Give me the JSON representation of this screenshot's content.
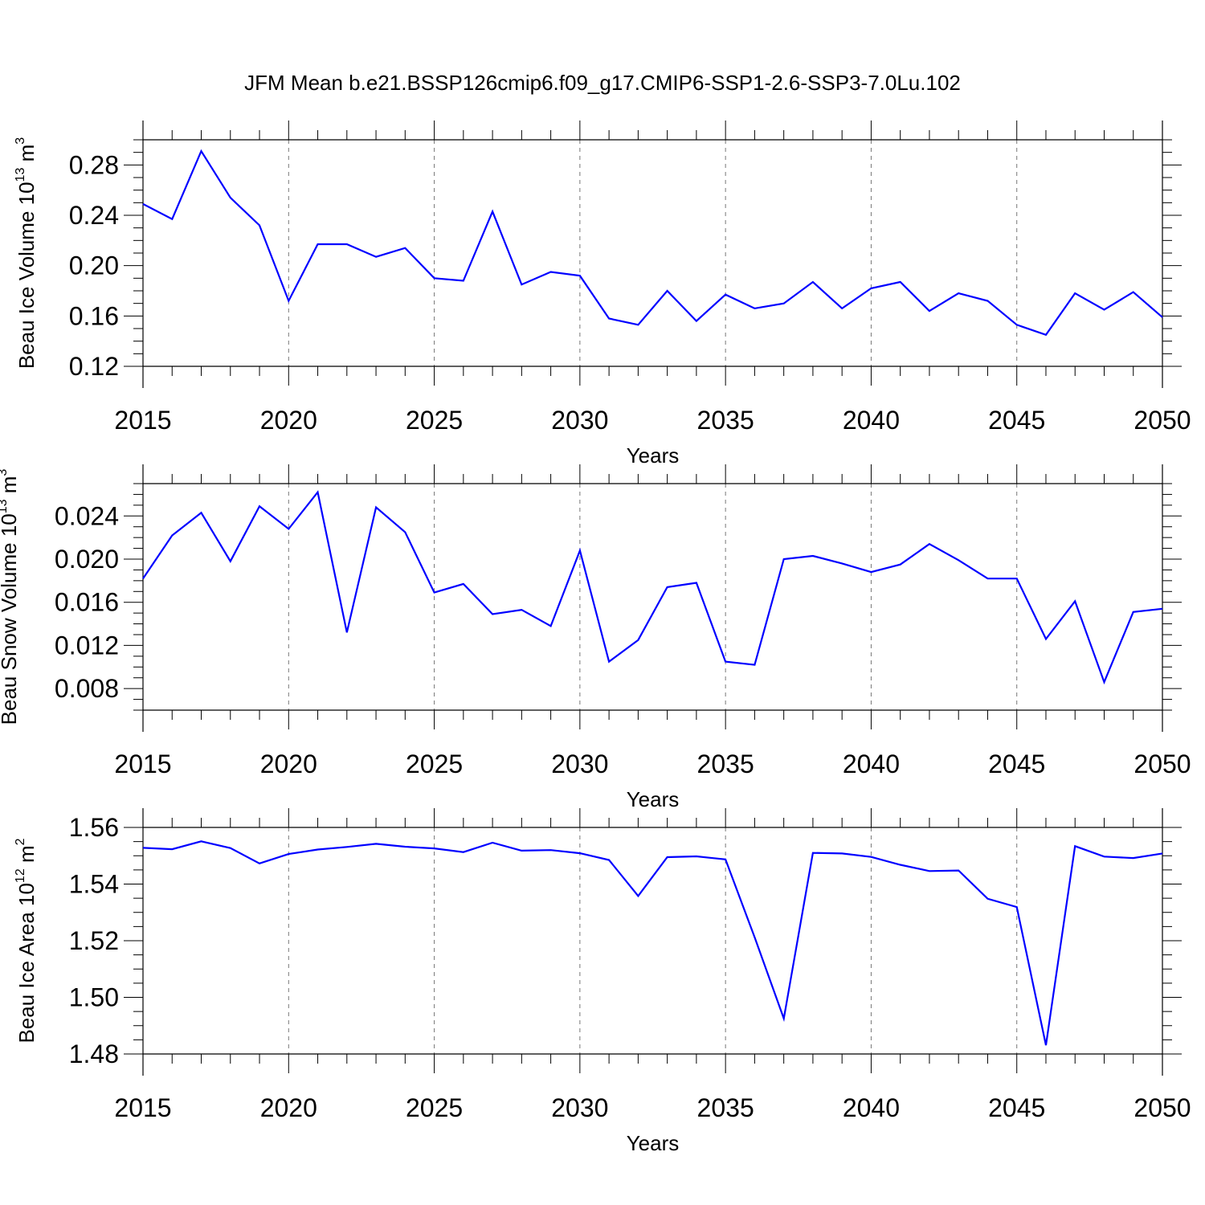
{
  "title": "JFM Mean b.e21.BSSP126cmip6.f09_g17.CMIP6-SSP1-2.6-SSP3-7.0Lu.102",
  "line_color": "#0000ff",
  "chart_data": [
    {
      "type": "line",
      "name": "ice-volume",
      "ylabel_main": "Beau Ice Volume 10",
      "ylabel_exp": "13",
      "ylabel_unit": " m",
      "ylabel_unit_exp": "3",
      "xlabel": "Years",
      "xlim": [
        2015,
        2050
      ],
      "ylim": [
        0.12,
        0.3
      ],
      "yticks": [
        0.12,
        0.16,
        0.2,
        0.24,
        0.28
      ],
      "ytick_labels": [
        "0.12",
        "0.16",
        "0.20",
        "0.24",
        "0.28"
      ],
      "xticks": [
        2015,
        2020,
        2025,
        2030,
        2035,
        2040,
        2045,
        2050
      ],
      "xtick_labels": [
        "2015",
        "2020",
        "2025",
        "2030",
        "2035",
        "2040",
        "2045",
        "2050"
      ],
      "x": [
        2015,
        2016,
        2017,
        2018,
        2019,
        2020,
        2021,
        2022,
        2023,
        2024,
        2025,
        2026,
        2027,
        2028,
        2029,
        2030,
        2031,
        2032,
        2033,
        2034,
        2035,
        2036,
        2037,
        2038,
        2039,
        2040,
        2041,
        2042,
        2043,
        2044,
        2045,
        2046,
        2047,
        2048,
        2049,
        2050
      ],
      "y": [
        0.249,
        0.237,
        0.291,
        0.254,
        0.232,
        0.172,
        0.217,
        0.217,
        0.207,
        0.214,
        0.19,
        0.188,
        0.243,
        0.185,
        0.195,
        0.192,
        0.158,
        0.153,
        0.18,
        0.156,
        0.177,
        0.166,
        0.17,
        0.187,
        0.166,
        0.182,
        0.187,
        0.164,
        0.178,
        0.172,
        0.153,
        0.145,
        0.178,
        0.165,
        0.179,
        0.159
      ]
    },
    {
      "type": "line",
      "name": "snow-volume",
      "ylabel_main": "Beau Snow Volume 10",
      "ylabel_exp": "13",
      "ylabel_unit": " m",
      "ylabel_unit_exp": "3",
      "xlabel": "Years",
      "xlim": [
        2015,
        2050
      ],
      "ylim": [
        0.006,
        0.027
      ],
      "yticks": [
        0.008,
        0.012,
        0.016,
        0.02,
        0.024
      ],
      "ytick_labels": [
        "0.008",
        "0.012",
        "0.016",
        "0.020",
        "0.024"
      ],
      "xticks": [
        2015,
        2020,
        2025,
        2030,
        2035,
        2040,
        2045,
        2050
      ],
      "xtick_labels": [
        "2015",
        "2020",
        "2025",
        "2030",
        "2035",
        "2040",
        "2045",
        "2050"
      ],
      "x": [
        2015,
        2016,
        2017,
        2018,
        2019,
        2020,
        2021,
        2022,
        2023,
        2024,
        2025,
        2026,
        2027,
        2028,
        2029,
        2030,
        2031,
        2032,
        2033,
        2034,
        2035,
        2036,
        2037,
        2038,
        2039,
        2040,
        2041,
        2042,
        2043,
        2044,
        2045,
        2046,
        2047,
        2048,
        2049,
        2050
      ],
      "y": [
        0.0182,
        0.0222,
        0.0243,
        0.0198,
        0.0249,
        0.0228,
        0.0262,
        0.0132,
        0.0248,
        0.0225,
        0.0169,
        0.0177,
        0.0149,
        0.0153,
        0.0138,
        0.0208,
        0.0105,
        0.0125,
        0.0174,
        0.0178,
        0.0105,
        0.0102,
        0.02,
        0.0203,
        0.0196,
        0.0188,
        0.0195,
        0.0214,
        0.0199,
        0.0182,
        0.0182,
        0.0126,
        0.0161,
        0.0086,
        0.0151,
        0.0154
      ]
    },
    {
      "type": "line",
      "name": "ice-area",
      "ylabel_main": "Beau Ice Area 10",
      "ylabel_exp": "12",
      "ylabel_unit": " m",
      "ylabel_unit_exp": "2",
      "xlabel": "Years",
      "xlim": [
        2015,
        2050
      ],
      "ylim": [
        1.48,
        1.56
      ],
      "yticks": [
        1.48,
        1.5,
        1.52,
        1.54,
        1.56
      ],
      "ytick_labels": [
        "1.48",
        "1.50",
        "1.52",
        "1.54",
        "1.56"
      ],
      "xticks": [
        2015,
        2020,
        2025,
        2030,
        2035,
        2040,
        2045,
        2050
      ],
      "xtick_labels": [
        "2015",
        "2020",
        "2025",
        "2030",
        "2035",
        "2040",
        "2045",
        "2050"
      ],
      "x": [
        2015,
        2016,
        2017,
        2018,
        2019,
        2020,
        2021,
        2022,
        2023,
        2024,
        2025,
        2026,
        2027,
        2028,
        2029,
        2030,
        2031,
        2032,
        2033,
        2034,
        2035,
        2036,
        2037,
        2038,
        2039,
        2040,
        2041,
        2042,
        2043,
        2044,
        2045,
        2046,
        2047,
        2048,
        2049,
        2050
      ],
      "y": [
        1.5528,
        1.5523,
        1.5551,
        1.5527,
        1.5473,
        1.5506,
        1.5522,
        1.5531,
        1.5542,
        1.5532,
        1.5526,
        1.5513,
        1.5546,
        1.5518,
        1.552,
        1.5509,
        1.5485,
        1.5358,
        1.5495,
        1.5498,
        1.5487,
        1.5212,
        1.4925,
        1.551,
        1.5508,
        1.5496,
        1.5468,
        1.5446,
        1.5448,
        1.5348,
        1.5319,
        1.4831,
        1.5534,
        1.5497,
        1.5492,
        1.5508
      ]
    }
  ]
}
